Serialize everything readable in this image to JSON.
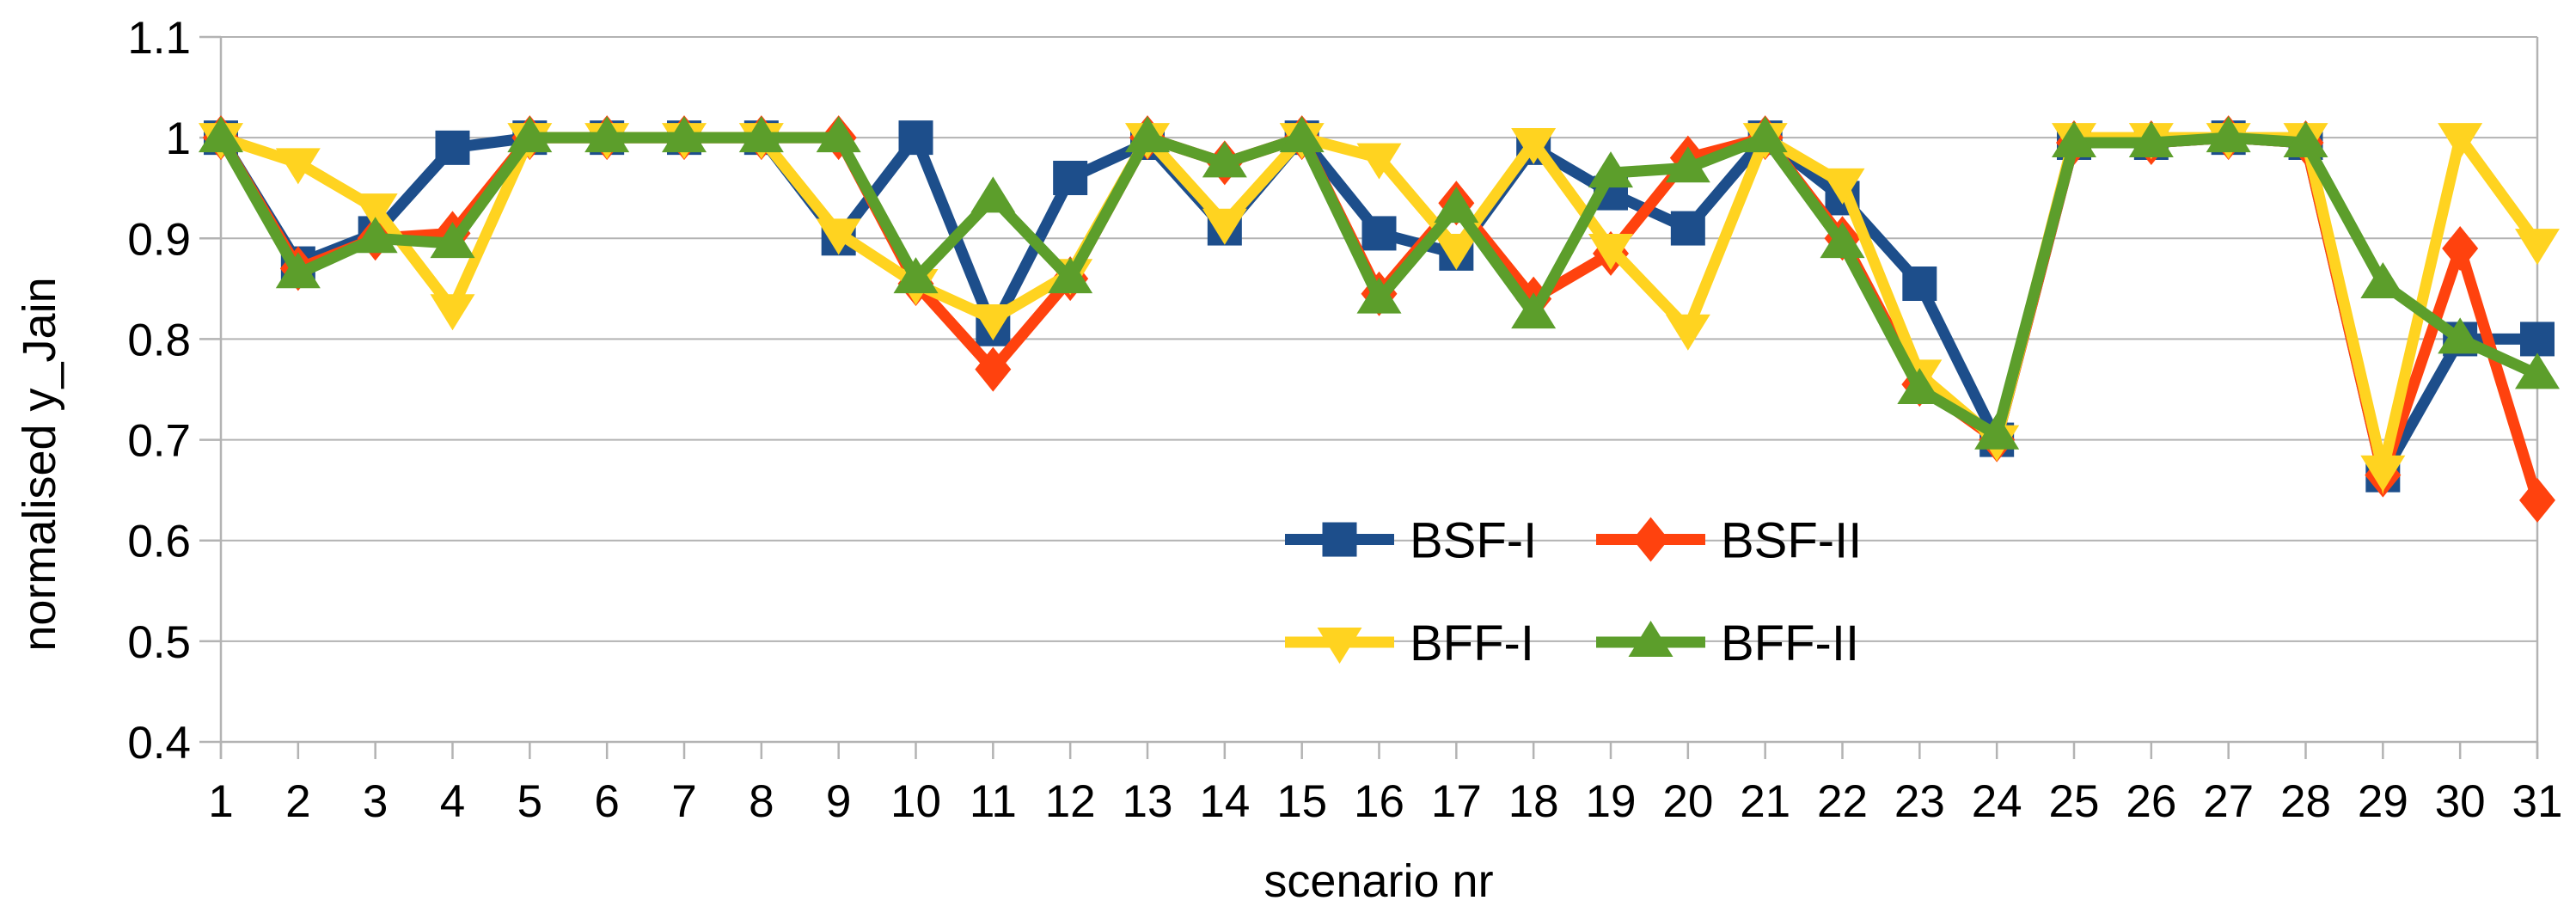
{
  "chart_data": {
    "type": "line",
    "title": "",
    "xlabel": "scenario nr",
    "ylabel": "normalised y_Jain",
    "x_categories": [
      "1",
      "2",
      "3",
      "4",
      "5",
      "6",
      "7",
      "8",
      "9",
      "10",
      "11",
      "12",
      "13",
      "14",
      "15",
      "16",
      "17",
      "18",
      "19",
      "20",
      "21",
      "22",
      "23",
      "24",
      "25",
      "26",
      "27",
      "28",
      "29",
      "30",
      "31"
    ],
    "ylim": [
      0.4,
      1.1
    ],
    "y_tick_step": 0.1,
    "y_tick_labels": [
      "1.1",
      "1",
      "0.9",
      "0.8",
      "0.7",
      "0.6",
      "0.5",
      "0.4"
    ],
    "grid": true,
    "legend_position": "inside-bottom-center-2x2",
    "series": [
      {
        "name": "BSF-I",
        "color": "#1D4E8B",
        "marker": "square",
        "values": [
          1.0,
          0.875,
          0.905,
          0.99,
          1.0,
          1.0,
          1.0,
          1.0,
          0.9,
          1.0,
          0.81,
          0.96,
          0.995,
          0.91,
          1.0,
          0.905,
          0.885,
          0.99,
          0.945,
          0.91,
          1.0,
          0.94,
          0.855,
          0.7,
          0.995,
          0.995,
          1.0,
          0.995,
          0.665,
          0.8,
          0.8
        ]
      },
      {
        "name": "BSF-II",
        "color": "#FF420E",
        "marker": "diamond",
        "values": [
          1.0,
          0.87,
          0.9,
          0.905,
          1.0,
          1.0,
          1.0,
          1.0,
          1.0,
          0.855,
          0.77,
          0.86,
          1.0,
          0.975,
          1.0,
          0.845,
          0.935,
          0.84,
          0.885,
          0.98,
          1.0,
          0.9,
          0.755,
          0.7,
          0.995,
          0.995,
          1.0,
          0.995,
          0.665,
          0.89,
          0.64
        ]
      },
      {
        "name": "BFF-I",
        "color": "#FFD320",
        "marker": "triangle-down",
        "values": [
          1.0,
          0.975,
          0.93,
          0.83,
          1.0,
          1.0,
          1.0,
          1.0,
          0.905,
          0.855,
          0.82,
          0.865,
          1.0,
          0.915,
          1.0,
          0.98,
          0.89,
          0.995,
          0.89,
          0.81,
          1.0,
          0.955,
          0.765,
          0.7,
          1.0,
          1.0,
          1.0,
          1.0,
          0.67,
          1.0,
          0.895
        ]
      },
      {
        "name": "BFF-II",
        "color": "#5C9E2B",
        "marker": "triangle-up",
        "values": [
          1.0,
          0.865,
          0.9,
          0.895,
          1.0,
          1.0,
          1.0,
          1.0,
          1.0,
          0.86,
          0.94,
          0.86,
          1.0,
          0.975,
          1.0,
          0.84,
          0.93,
          0.825,
          0.965,
          0.97,
          1.0,
          0.895,
          0.75,
          0.705,
          0.995,
          0.995,
          1.0,
          0.995,
          0.855,
          0.8,
          0.765
        ]
      }
    ],
    "colors": {
      "gridline": "#B3B3B3",
      "axis": "#B3B3B3",
      "text": "#000000"
    }
  },
  "legend": {
    "items": [
      "BSF-I",
      "BSF-II",
      "BFF-I",
      "BFF-II"
    ]
  }
}
